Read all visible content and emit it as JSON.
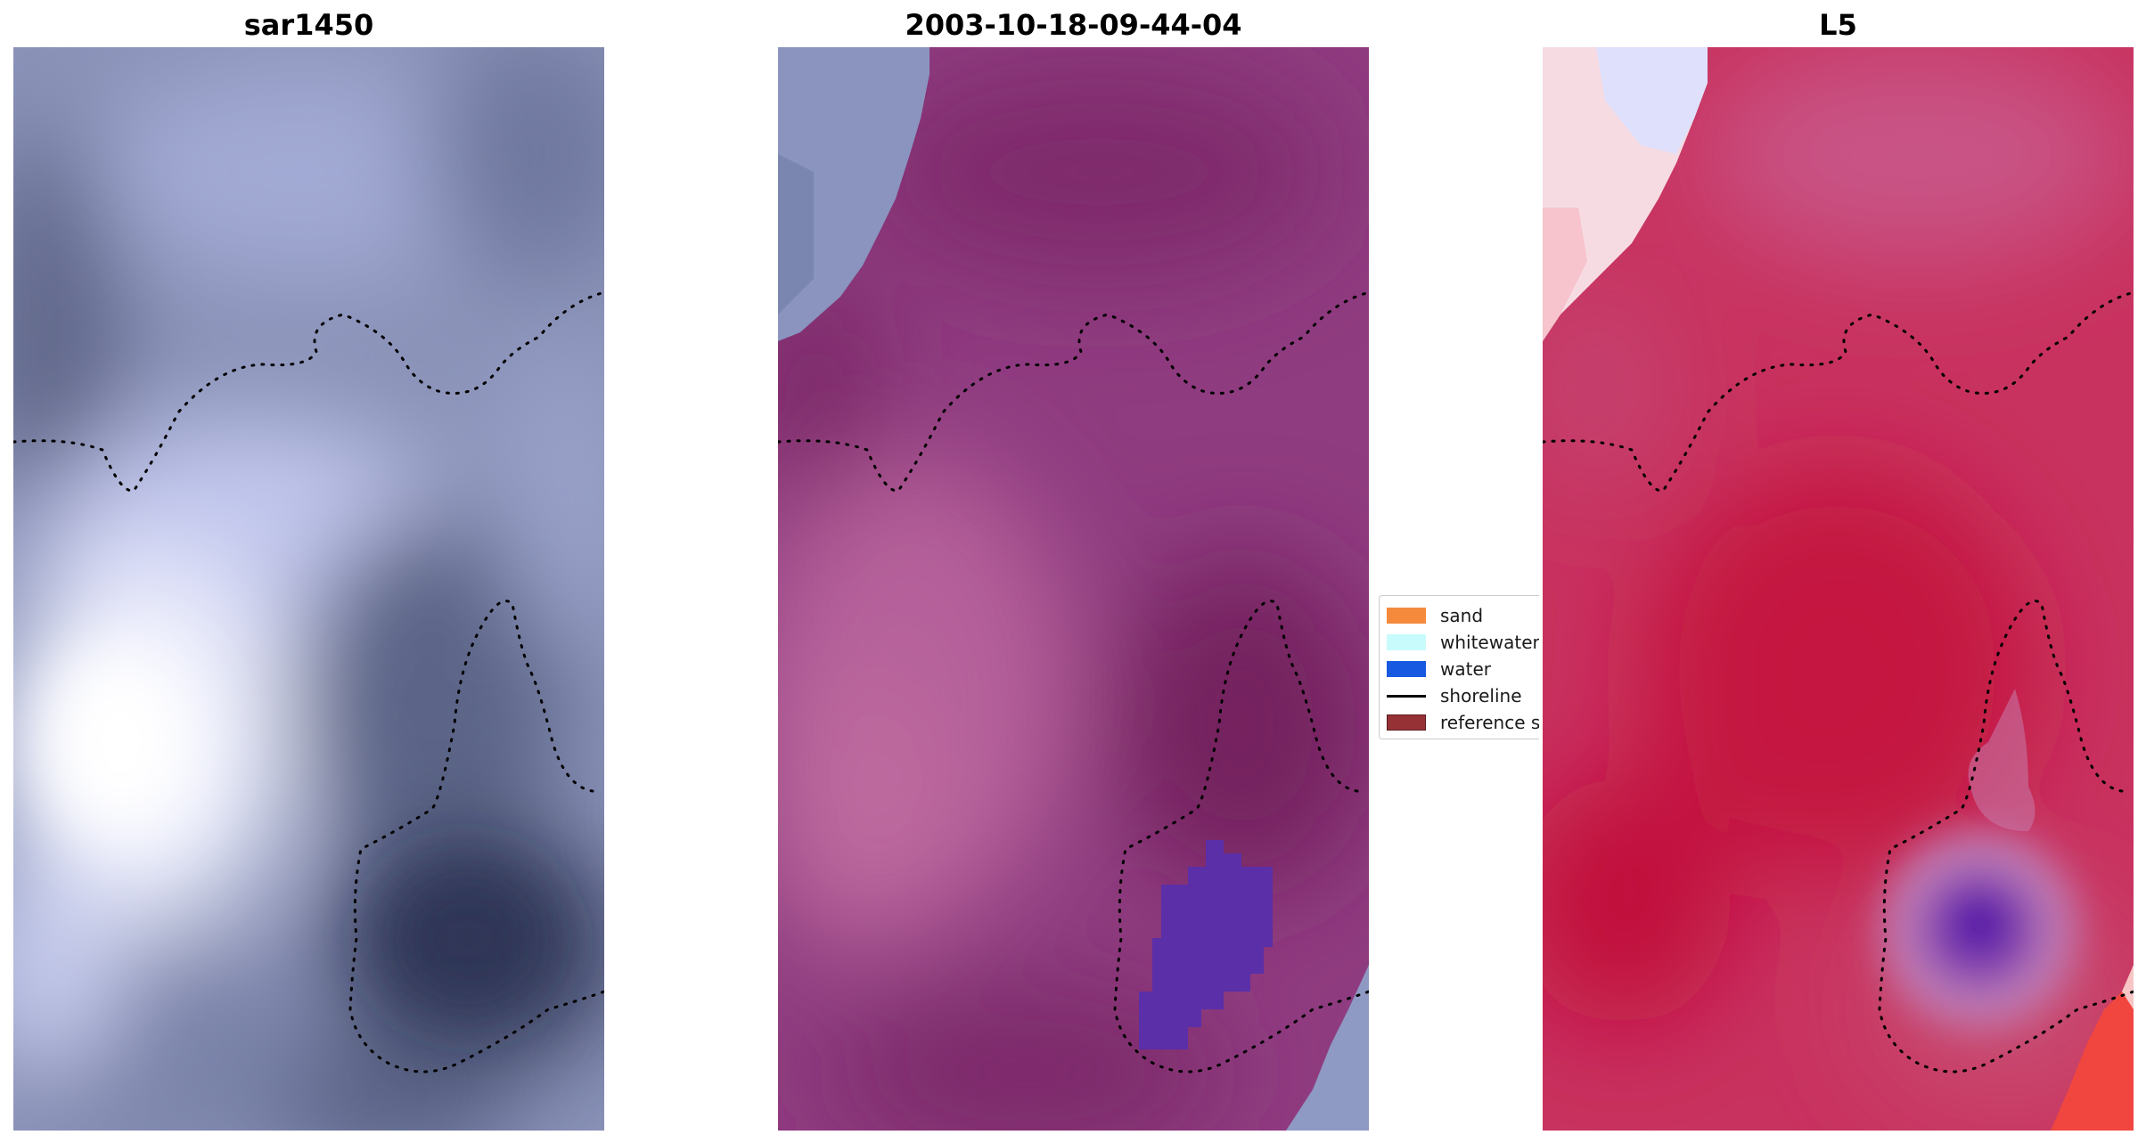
{
  "panels": [
    {
      "title": "sar1450",
      "image": "grayscale-blue SAR backscatter tile"
    },
    {
      "title": "2003-10-18-09-44-04",
      "image": "classified magenta composite tile"
    },
    {
      "title": "L5",
      "image": "red-white-blue diverging index tile"
    }
  ],
  "legend": {
    "items": [
      {
        "label": "sand",
        "color": "#f58a3d",
        "kind": "patch"
      },
      {
        "label": "whitewater",
        "color": "#c8fbfb",
        "kind": "patch"
      },
      {
        "label": "water",
        "color": "#1759e0",
        "kind": "patch"
      },
      {
        "label": "shoreline",
        "color": "#000000",
        "kind": "line"
      },
      {
        "label": "reference s",
        "color": "#963236",
        "kind": "patch"
      }
    ]
  },
  "colors": {
    "shoreline_dots": "#000000",
    "water_mask": "#5a2fa8"
  }
}
